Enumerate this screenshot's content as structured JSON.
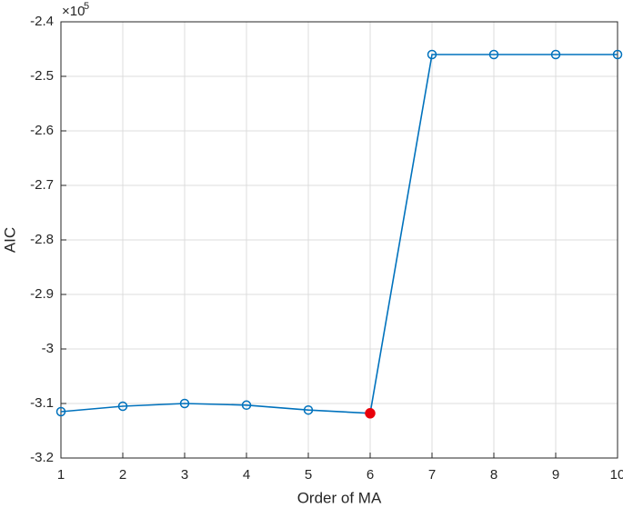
{
  "chart_data": {
    "type": "line",
    "x_label": "Order of MA",
    "y_label": "AIC",
    "y_exponent_base": "×10",
    "y_exponent_power": "5",
    "x": [
      1,
      2,
      3,
      4,
      5,
      6,
      7,
      8,
      9,
      10
    ],
    "series": [
      {
        "color": "#0072bd",
        "values": [
          -3.115,
          -3.105,
          -3.1,
          -3.103,
          -3.112,
          -3.118,
          -2.46,
          -2.46,
          -2.46,
          -2.46
        ]
      }
    ],
    "highlight_index": 5,
    "highlight_color": "#e8000b",
    "xlim": [
      1,
      10
    ],
    "xticks": [
      1,
      2,
      3,
      4,
      5,
      6,
      7,
      8,
      9,
      10
    ],
    "ylim": [
      -3.2,
      -2.4
    ],
    "yticks": [
      -3.2,
      -3.1,
      -3,
      -2.9,
      -2.8,
      -2.7,
      -2.6,
      -2.5,
      -2.4
    ],
    "grid": true
  }
}
